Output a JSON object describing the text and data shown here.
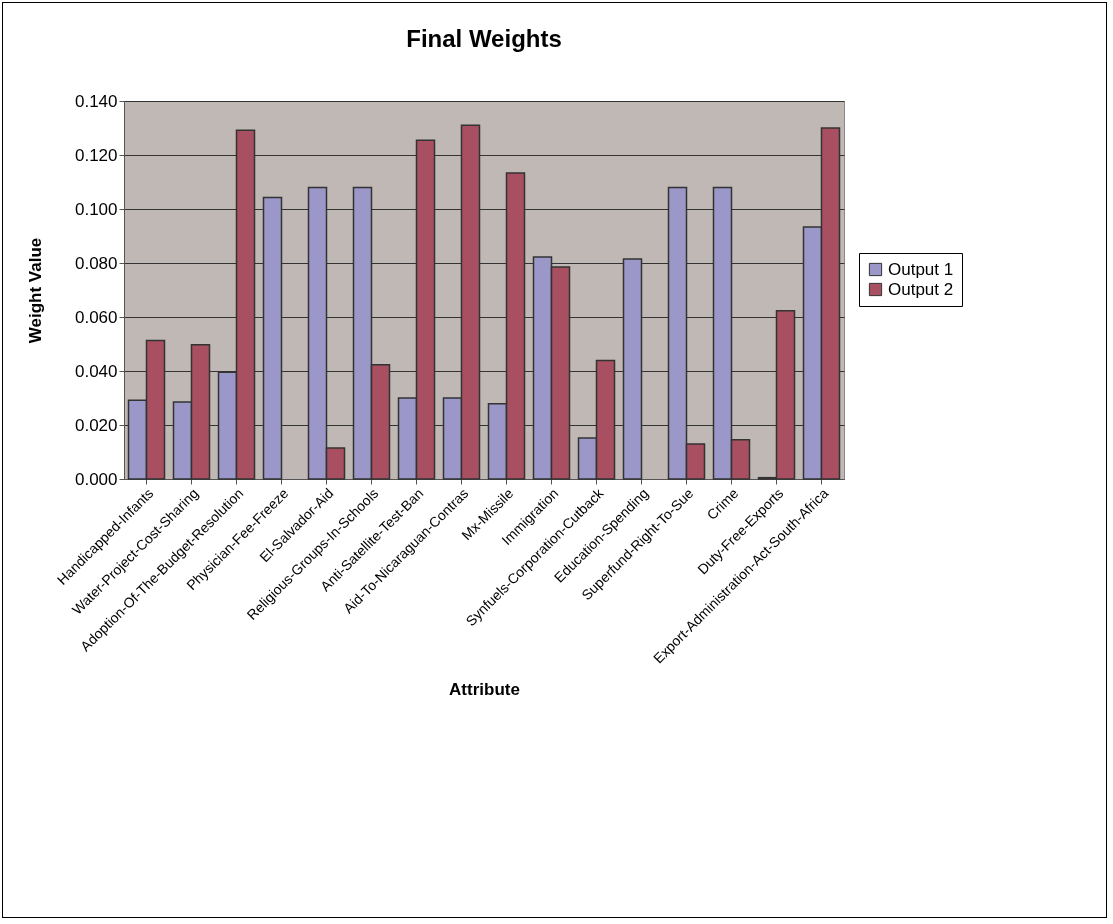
{
  "chart_data": {
    "type": "bar",
    "title": "Final Weights",
    "xlabel": "Attribute",
    "ylabel": "Weight Value",
    "categories": [
      "Handicapped-Infants",
      "Water-Project-Cost-Sharing",
      "Adoption-Of-The-Budget-Resolution",
      "Physician-Fee-Freeze",
      "El-Salvador-Aid",
      "Religious-Groups-In-Schools",
      "Anti-Satellite-Test-Ban",
      "Aid-To-Nicaraguan-Contras",
      "Mx-Missile",
      "Immigration",
      "Synfuels-Corporation-Cutback",
      "Education-Spending",
      "Superfund-Right-To-Sue",
      "Crime",
      "Duty-Free-Exports",
      "Export-Administration-Act-South-Africa"
    ],
    "series": [
      {
        "name": "Output 1",
        "color": "#9b97c9",
        "values": [
          0.0292,
          0.0285,
          0.0395,
          0.1043,
          0.108,
          0.108,
          0.03,
          0.03,
          0.0279,
          0.0822,
          0.0152,
          0.0815,
          0.108,
          0.108,
          0.0005,
          0.0933
        ]
      },
      {
        "name": "Output 2",
        "color": "#a85061",
        "values": [
          0.0513,
          0.0497,
          0.1292,
          null,
          0.0115,
          0.0423,
          0.1255,
          0.131,
          0.1133,
          0.0785,
          0.0439,
          null,
          0.013,
          0.0145,
          0.0623,
          0.13
        ]
      }
    ],
    "ylim": [
      0,
      0.14
    ],
    "yticks": [
      {
        "value": 0,
        "label": "0.000"
      },
      {
        "value": 0.02,
        "label": "0.020"
      },
      {
        "value": 0.04,
        "label": "0.040"
      },
      {
        "value": 0.06,
        "label": "0.060"
      },
      {
        "value": 0.08,
        "label": "0.080"
      },
      {
        "value": 0.1,
        "label": "0.100"
      },
      {
        "value": 0.12,
        "label": "0.120"
      },
      {
        "value": 0.14,
        "label": "0.140"
      }
    ],
    "grid": "y",
    "legend": "right"
  }
}
